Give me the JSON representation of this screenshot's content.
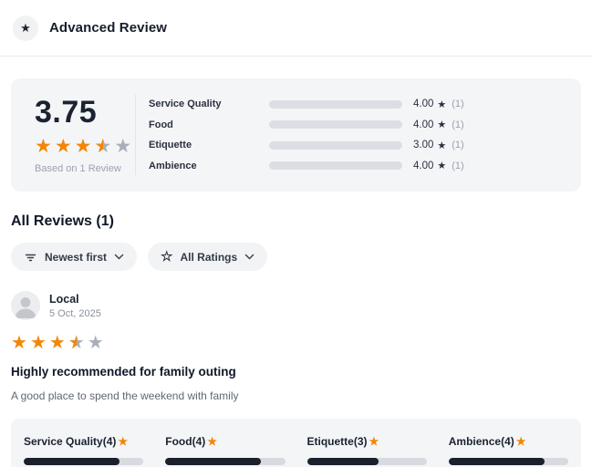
{
  "colors": {
    "accent_orange": "#f28605",
    "dark_bar": "#1a202c",
    "track_gray": "#dcdee3",
    "card_bg": "#f4f5f7",
    "muted_text": "#9aa2ae"
  },
  "header": {
    "title": "Advanced Review",
    "icon": "star-icon"
  },
  "summary": {
    "average": "3.75",
    "average_stars": 3.5,
    "based_on": "Based on 1 Review",
    "categories": [
      {
        "label": "Service Quality",
        "rating": 4,
        "value": "4.00",
        "count": "(1)"
      },
      {
        "label": "Food",
        "rating": 4,
        "value": "4.00",
        "count": "(1)"
      },
      {
        "label": "Etiquette",
        "rating": 3,
        "value": "3.00",
        "count": "(1)"
      },
      {
        "label": "Ambience",
        "rating": 4,
        "value": "4.00",
        "count": "(1)"
      }
    ]
  },
  "reviews_section": {
    "heading": "All Reviews (1)",
    "filters": [
      {
        "label": "Newest first",
        "icon": "sort-lines-icon"
      },
      {
        "label": "All Ratings",
        "icon": "star-outline-icon"
      }
    ]
  },
  "review": {
    "author": "Local",
    "date": "5 Oct, 2025",
    "stars": 3.5,
    "title": "Highly recommended for family outing",
    "body": "A good place to spend the weekend with family",
    "category_ratings": [
      {
        "label": "Service Quality",
        "rating": 4
      },
      {
        "label": "Food",
        "rating": 4
      },
      {
        "label": "Etiquette",
        "rating": 3
      },
      {
        "label": "Ambience",
        "rating": 4
      }
    ]
  }
}
